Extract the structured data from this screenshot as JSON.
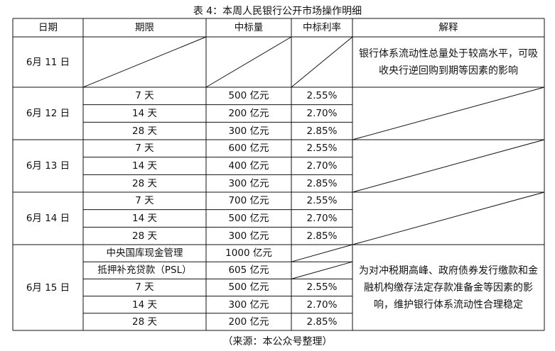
{
  "title": "表 4：本周人民银行公开市场操作明细",
  "headers": [
    "日期",
    "期限",
    "中标量",
    "中标利率",
    "解释"
  ],
  "rows": [
    {
      "date": "6月 11 日",
      "items": [],
      "explanation": "银行体系流动性总量处于较高水平，可吸收央行逆回购到期等因素的影响"
    },
    {
      "date": "6月 12 日",
      "items": [
        {
          "term": "7 天",
          "amount": "500 亿元",
          "rate": "2.55%"
        },
        {
          "term": "14 天",
          "amount": "200 亿元",
          "rate": "2.70%"
        },
        {
          "term": "28 天",
          "amount": "300 亿元",
          "rate": "2.85%"
        }
      ],
      "explanation": ""
    },
    {
      "date": "6月 13 日",
      "items": [
        {
          "term": "7 天",
          "amount": "600 亿元",
          "rate": "2.55%"
        },
        {
          "term": "14 天",
          "amount": "400 亿元",
          "rate": "2.70%"
        },
        {
          "term": "28 天",
          "amount": "300 亿元",
          "rate": "2.85%"
        }
      ],
      "explanation": ""
    },
    {
      "date": "6月 14 日",
      "items": [
        {
          "term": "7 天",
          "amount": "700 亿元",
          "rate": "2.55%"
        },
        {
          "term": "14 天",
          "amount": "500 亿元",
          "rate": "2.70%"
        },
        {
          "term": "28 天",
          "amount": "300 亿元",
          "rate": "2.85%"
        }
      ],
      "explanation": ""
    },
    {
      "date": "6月 15 日",
      "items": [
        {
          "term": "中央国库现金管理",
          "amount": "1000 亿元",
          "rate": ""
        },
        {
          "term": "抵押补充贷款（PSL）",
          "amount": "605 亿元",
          "rate": ""
        },
        {
          "term": "7 天",
          "amount": "500 亿元",
          "rate": "2.55%"
        },
        {
          "term": "14 天",
          "amount": "300 亿元",
          "rate": "2.70%"
        },
        {
          "term": "28 天",
          "amount": "200 亿元",
          "rate": "2.85%"
        }
      ],
      "explanation": "为对冲税期高峰、政府债券发行缴款和金融机构缴存法定存款准备金等因素的影响，维护银行体系流动性合理稳定"
    }
  ],
  "source": "（来源：本公众号整理）"
}
